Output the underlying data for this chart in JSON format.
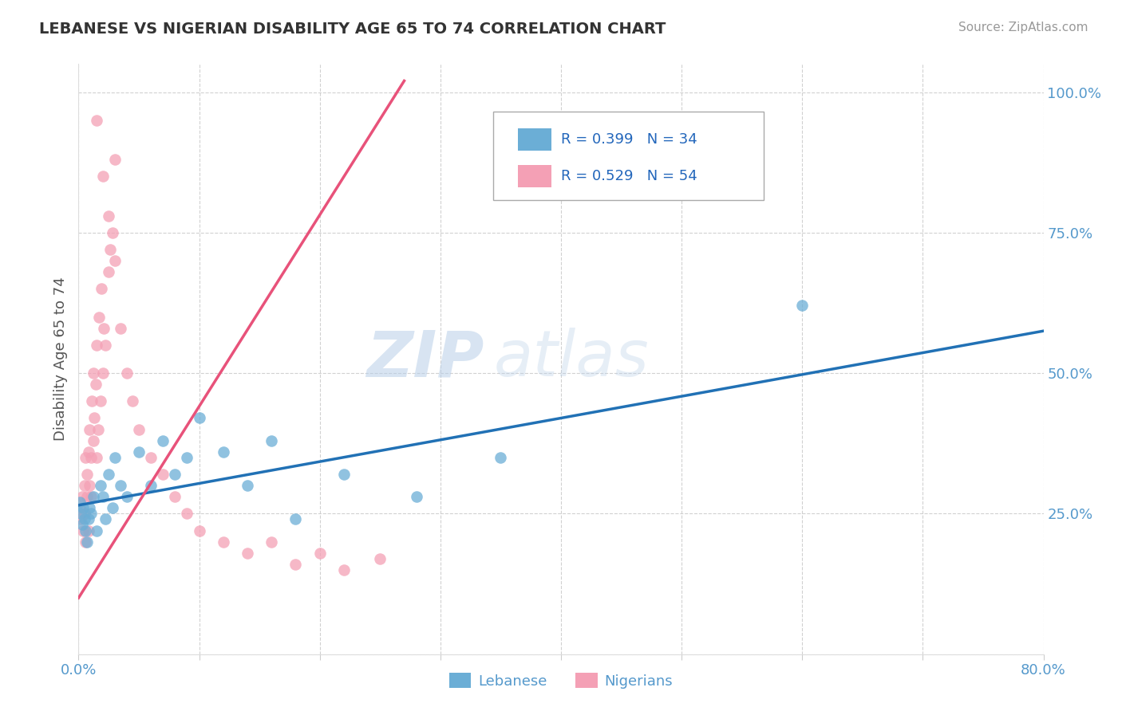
{
  "title": "LEBANESE VS NIGERIAN DISABILITY AGE 65 TO 74 CORRELATION CHART",
  "source": "Source: ZipAtlas.com",
  "ylabel": "Disability Age 65 to 74",
  "xmin": 0.0,
  "xmax": 0.8,
  "ymin": 0.0,
  "ymax": 1.05,
  "x_ticks": [
    0.0,
    0.1,
    0.2,
    0.3,
    0.4,
    0.5,
    0.6,
    0.7,
    0.8
  ],
  "y_ticks": [
    0.0,
    0.25,
    0.5,
    0.75,
    1.0
  ],
  "y_tick_labels": [
    "",
    "25.0%",
    "50.0%",
    "75.0%",
    "100.0%"
  ],
  "legend_r1": "R = 0.399",
  "legend_n1": "N = 34",
  "legend_r2": "R = 0.529",
  "legend_n2": "N = 54",
  "color_lebanese": "#6baed6",
  "color_nigerian": "#f4a0b5",
  "color_line_lebanese": "#2171b5",
  "color_line_nigerian": "#e8527a",
  "watermark_zip": "ZIP",
  "watermark_atlas": "atlas",
  "background_color": "#ffffff",
  "grid_color": "#cccccc",
  "lebanese_x": [
    0.001,
    0.002,
    0.003,
    0.004,
    0.005,
    0.006,
    0.007,
    0.008,
    0.009,
    0.01,
    0.012,
    0.015,
    0.018,
    0.02,
    0.022,
    0.025,
    0.028,
    0.03,
    0.035,
    0.04,
    0.05,
    0.06,
    0.07,
    0.08,
    0.09,
    0.1,
    0.12,
    0.14,
    0.16,
    0.18,
    0.22,
    0.28,
    0.35,
    0.6
  ],
  "lebanese_y": [
    0.27,
    0.25,
    0.23,
    0.26,
    0.24,
    0.22,
    0.2,
    0.24,
    0.26,
    0.25,
    0.28,
    0.22,
    0.3,
    0.28,
    0.24,
    0.32,
    0.26,
    0.35,
    0.3,
    0.28,
    0.36,
    0.3,
    0.38,
    0.32,
    0.35,
    0.42,
    0.36,
    0.3,
    0.38,
    0.24,
    0.32,
    0.28,
    0.35,
    0.62
  ],
  "nigerian_x": [
    0.001,
    0.002,
    0.003,
    0.004,
    0.005,
    0.005,
    0.006,
    0.006,
    0.007,
    0.007,
    0.008,
    0.008,
    0.009,
    0.009,
    0.01,
    0.01,
    0.011,
    0.012,
    0.012,
    0.013,
    0.014,
    0.015,
    0.015,
    0.016,
    0.017,
    0.018,
    0.019,
    0.02,
    0.021,
    0.022,
    0.025,
    0.026,
    0.028,
    0.03,
    0.035,
    0.04,
    0.045,
    0.05,
    0.06,
    0.07,
    0.08,
    0.09,
    0.1,
    0.12,
    0.14,
    0.16,
    0.18,
    0.2,
    0.22,
    0.25,
    0.015,
    0.02,
    0.025,
    0.03
  ],
  "nigerian_y": [
    0.26,
    0.24,
    0.28,
    0.22,
    0.25,
    0.3,
    0.2,
    0.35,
    0.28,
    0.32,
    0.22,
    0.36,
    0.3,
    0.4,
    0.28,
    0.35,
    0.45,
    0.38,
    0.5,
    0.42,
    0.48,
    0.35,
    0.55,
    0.4,
    0.6,
    0.45,
    0.65,
    0.5,
    0.58,
    0.55,
    0.68,
    0.72,
    0.75,
    0.7,
    0.58,
    0.5,
    0.45,
    0.4,
    0.35,
    0.32,
    0.28,
    0.25,
    0.22,
    0.2,
    0.18,
    0.2,
    0.16,
    0.18,
    0.15,
    0.17,
    0.95,
    0.85,
    0.78,
    0.88
  ],
  "leb_line_x0": 0.0,
  "leb_line_y0": 0.265,
  "leb_line_x1": 0.8,
  "leb_line_y1": 0.575,
  "nig_line_x0": 0.0,
  "nig_line_y0": 0.1,
  "nig_line_x1": 0.27,
  "nig_line_y1": 1.02
}
